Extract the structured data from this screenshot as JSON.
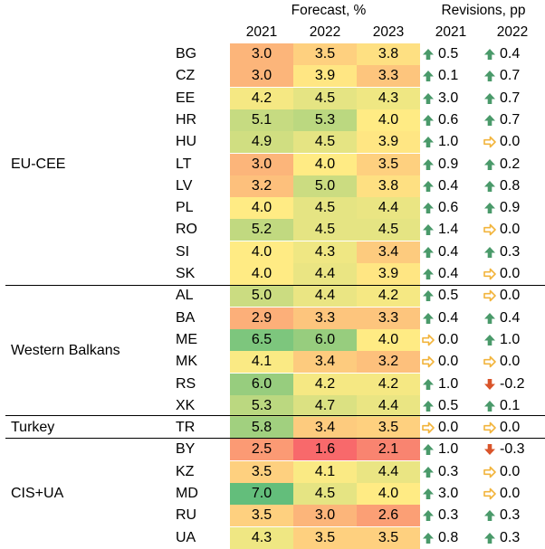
{
  "chart_data": {
    "type": "table",
    "header": {
      "forecast_title": "Forecast, %",
      "revisions_title": "Revisions, pp",
      "forecast_years": [
        "2021",
        "2022",
        "2023"
      ],
      "revision_years": [
        "2021",
        "2022"
      ]
    },
    "colors": {
      "scale_low": "#f8696b",
      "scale_mid": "#ffeb84",
      "scale_high": "#63be7b",
      "arrow_up": "#4a9a6a",
      "arrow_right": "#f2b43c",
      "arrow_down": "#d9542a",
      "divider": "#000000"
    },
    "groups": [
      {
        "label": "EU-CEE",
        "rows": [
          {
            "country": "BG",
            "forecast": [
              "3.0",
              "3.5",
              "3.8"
            ],
            "revisions": [
              {
                "dir": "up",
                "value": "0.5"
              },
              {
                "dir": "up",
                "value": "0.4"
              }
            ]
          },
          {
            "country": "CZ",
            "forecast": [
              "3.0",
              "3.9",
              "3.3"
            ],
            "revisions": [
              {
                "dir": "up",
                "value": "0.1"
              },
              {
                "dir": "up",
                "value": "0.7"
              }
            ]
          },
          {
            "country": "EE",
            "forecast": [
              "4.2",
              "4.5",
              "4.3"
            ],
            "revisions": [
              {
                "dir": "up",
                "value": "3.0"
              },
              {
                "dir": "up",
                "value": "0.7"
              }
            ]
          },
          {
            "country": "HR",
            "forecast": [
              "5.1",
              "5.3",
              "4.0"
            ],
            "revisions": [
              {
                "dir": "up",
                "value": "0.6"
              },
              {
                "dir": "up",
                "value": "0.7"
              }
            ]
          },
          {
            "country": "HU",
            "forecast": [
              "4.9",
              "4.5",
              "3.9"
            ],
            "revisions": [
              {
                "dir": "up",
                "value": "1.0"
              },
              {
                "dir": "right",
                "value": "0.0"
              }
            ]
          },
          {
            "country": "LT",
            "forecast": [
              "3.0",
              "4.0",
              "3.5"
            ],
            "revisions": [
              {
                "dir": "up",
                "value": "0.9"
              },
              {
                "dir": "up",
                "value": "0.2"
              }
            ]
          },
          {
            "country": "LV",
            "forecast": [
              "3.2",
              "5.0",
              "3.8"
            ],
            "revisions": [
              {
                "dir": "up",
                "value": "0.4"
              },
              {
                "dir": "up",
                "value": "0.8"
              }
            ]
          },
          {
            "country": "PL",
            "forecast": [
              "4.0",
              "4.5",
              "4.4"
            ],
            "revisions": [
              {
                "dir": "up",
                "value": "0.6"
              },
              {
                "dir": "up",
                "value": "0.9"
              }
            ]
          },
          {
            "country": "RO",
            "forecast": [
              "5.2",
              "4.5",
              "4.5"
            ],
            "revisions": [
              {
                "dir": "up",
                "value": "1.4"
              },
              {
                "dir": "right",
                "value": "0.0"
              }
            ]
          },
          {
            "country": "SI",
            "forecast": [
              "4.0",
              "4.3",
              "3.4"
            ],
            "revisions": [
              {
                "dir": "up",
                "value": "0.4"
              },
              {
                "dir": "up",
                "value": "0.3"
              }
            ]
          },
          {
            "country": "SK",
            "forecast": [
              "4.0",
              "4.4",
              "3.9"
            ],
            "revisions": [
              {
                "dir": "up",
                "value": "0.4"
              },
              {
                "dir": "right",
                "value": "0.0"
              }
            ]
          }
        ]
      },
      {
        "label": "Western Balkans",
        "rows": [
          {
            "country": "AL",
            "forecast": [
              "5.0",
              "4.4",
              "4.2"
            ],
            "revisions": [
              {
                "dir": "up",
                "value": "0.5"
              },
              {
                "dir": "right",
                "value": "0.0"
              }
            ]
          },
          {
            "country": "BA",
            "forecast": [
              "2.9",
              "3.3",
              "3.3"
            ],
            "revisions": [
              {
                "dir": "up",
                "value": "0.4"
              },
              {
                "dir": "up",
                "value": "0.4"
              }
            ]
          },
          {
            "country": "ME",
            "forecast": [
              "6.5",
              "6.0",
              "4.0"
            ],
            "revisions": [
              {
                "dir": "right",
                "value": "0.0"
              },
              {
                "dir": "up",
                "value": "1.0"
              }
            ]
          },
          {
            "country": "MK",
            "forecast": [
              "4.1",
              "3.4",
              "3.2"
            ],
            "revisions": [
              {
                "dir": "right",
                "value": "0.0"
              },
              {
                "dir": "right",
                "value": "0.0"
              }
            ]
          },
          {
            "country": "RS",
            "forecast": [
              "6.0",
              "4.2",
              "4.2"
            ],
            "revisions": [
              {
                "dir": "up",
                "value": "1.0"
              },
              {
                "dir": "down",
                "value": "-0.2"
              }
            ]
          },
          {
            "country": "XK",
            "forecast": [
              "5.3",
              "4.7",
              "4.4"
            ],
            "revisions": [
              {
                "dir": "up",
                "value": "0.5"
              },
              {
                "dir": "up",
                "value": "0.1"
              }
            ]
          }
        ]
      },
      {
        "label": "Turkey",
        "rows": [
          {
            "country": "TR",
            "forecast": [
              "5.8",
              "3.4",
              "3.5"
            ],
            "revisions": [
              {
                "dir": "right",
                "value": "0.0"
              },
              {
                "dir": "right",
                "value": "0.0"
              }
            ]
          }
        ]
      },
      {
        "label": "CIS+UA",
        "rows": [
          {
            "country": "BY",
            "forecast": [
              "2.5",
              "1.6",
              "2.1"
            ],
            "revisions": [
              {
                "dir": "up",
                "value": "1.0"
              },
              {
                "dir": "down",
                "value": "-0.3"
              }
            ]
          },
          {
            "country": "KZ",
            "forecast": [
              "3.5",
              "4.1",
              "4.4"
            ],
            "revisions": [
              {
                "dir": "up",
                "value": "0.3"
              },
              {
                "dir": "right",
                "value": "0.0"
              }
            ]
          },
          {
            "country": "MD",
            "forecast": [
              "7.0",
              "4.5",
              "4.0"
            ],
            "revisions": [
              {
                "dir": "up",
                "value": "3.0"
              },
              {
                "dir": "right",
                "value": "0.0"
              }
            ]
          },
          {
            "country": "RU",
            "forecast": [
              "3.5",
              "3.0",
              "2.6"
            ],
            "revisions": [
              {
                "dir": "up",
                "value": "0.3"
              },
              {
                "dir": "up",
                "value": "0.3"
              }
            ]
          },
          {
            "country": "UA",
            "forecast": [
              "4.3",
              "3.5",
              "3.5"
            ],
            "revisions": [
              {
                "dir": "up",
                "value": "0.8"
              },
              {
                "dir": "up",
                "value": "0.3"
              }
            ]
          }
        ]
      }
    ]
  }
}
